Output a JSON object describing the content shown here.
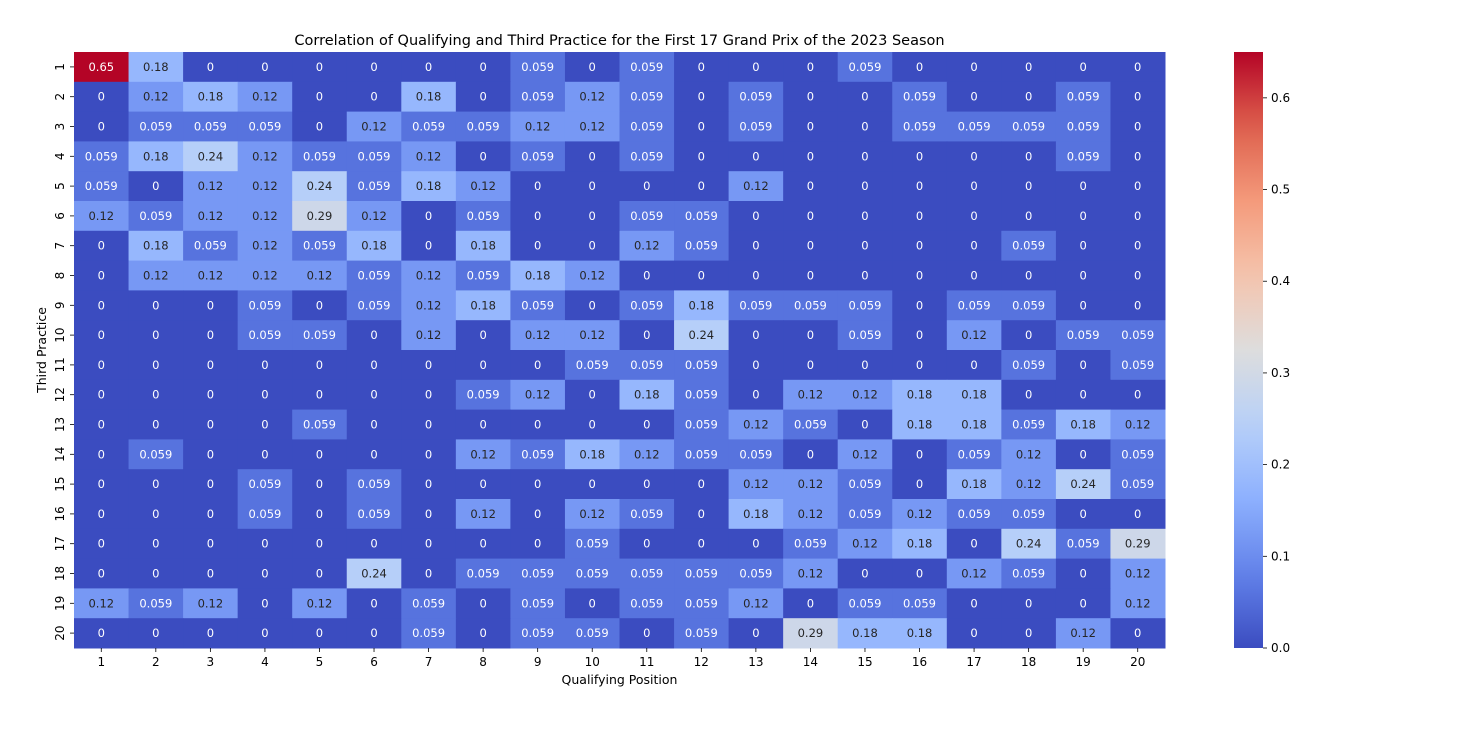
{
  "chart_data": {
    "type": "heatmap",
    "title": "Correlation of Qualifying and Third Practice for the First 17 Grand Prix of the 2023 Season",
    "xlabel": "Qualifying Position",
    "ylabel": "Third Practice",
    "x_categories": [
      "1",
      "2",
      "3",
      "4",
      "5",
      "6",
      "7",
      "8",
      "9",
      "10",
      "11",
      "12",
      "13",
      "14",
      "15",
      "16",
      "17",
      "18",
      "19",
      "20"
    ],
    "y_categories": [
      "1",
      "2",
      "3",
      "4",
      "5",
      "6",
      "7",
      "8",
      "9",
      "10",
      "11",
      "12",
      "13",
      "14",
      "15",
      "16",
      "17",
      "18",
      "19",
      "20"
    ],
    "values": [
      [
        0.65,
        0.18,
        0,
        0,
        0,
        0,
        0,
        0,
        0.059,
        0,
        0.059,
        0,
        0,
        0,
        0.059,
        0,
        0,
        0,
        0,
        0
      ],
      [
        0,
        0.12,
        0.18,
        0.12,
        0,
        0,
        0.18,
        0,
        0.059,
        0.12,
        0.059,
        0,
        0.059,
        0,
        0,
        0.059,
        0,
        0,
        0.059,
        0
      ],
      [
        0,
        0.059,
        0.059,
        0.059,
        0,
        0.12,
        0.059,
        0.059,
        0.12,
        0.12,
        0.059,
        0,
        0.059,
        0,
        0,
        0.059,
        0.059,
        0.059,
        0.059,
        0
      ],
      [
        0.059,
        0.18,
        0.24,
        0.12,
        0.059,
        0.059,
        0.12,
        0,
        0.059,
        0,
        0.059,
        0,
        0,
        0,
        0,
        0,
        0,
        0,
        0.059,
        0
      ],
      [
        0.059,
        0,
        0.12,
        0.12,
        0.24,
        0.059,
        0.18,
        0.12,
        0,
        0,
        0,
        0,
        0.12,
        0,
        0,
        0,
        0,
        0,
        0,
        0
      ],
      [
        0.12,
        0.059,
        0.12,
        0.12,
        0.29,
        0.12,
        0,
        0.059,
        0,
        0,
        0.059,
        0.059,
        0,
        0,
        0,
        0,
        0,
        0,
        0,
        0
      ],
      [
        0,
        0.18,
        0.059,
        0.12,
        0.059,
        0.18,
        0,
        0.18,
        0,
        0,
        0.12,
        0.059,
        0,
        0,
        0,
        0,
        0,
        0.059,
        0,
        0
      ],
      [
        0,
        0.12,
        0.12,
        0.12,
        0.12,
        0.059,
        0.12,
        0.059,
        0.18,
        0.12,
        0,
        0,
        0,
        0,
        0,
        0,
        0,
        0,
        0,
        0
      ],
      [
        0,
        0,
        0,
        0.059,
        0,
        0.059,
        0.12,
        0.18,
        0.059,
        0,
        0.059,
        0.18,
        0.059,
        0.059,
        0.059,
        0,
        0.059,
        0.059,
        0,
        0
      ],
      [
        0,
        0,
        0,
        0.059,
        0.059,
        0,
        0.12,
        0,
        0.12,
        0.12,
        0,
        0.24,
        0,
        0,
        0.059,
        0,
        0.12,
        0,
        0.059,
        0.059
      ],
      [
        0,
        0,
        0,
        0,
        0,
        0,
        0,
        0,
        0,
        0.059,
        0.059,
        0.059,
        0,
        0,
        0,
        0,
        0,
        0.059,
        0,
        0.059
      ],
      [
        0,
        0,
        0,
        0,
        0,
        0,
        0,
        0.059,
        0.12,
        0,
        0.18,
        0.059,
        0,
        0.12,
        0.12,
        0.18,
        0.18,
        0,
        0,
        0
      ],
      [
        0,
        0,
        0,
        0,
        0.059,
        0,
        0,
        0,
        0,
        0,
        0,
        0.059,
        0.12,
        0.059,
        0,
        0.18,
        0.18,
        0.059,
        0.18,
        0.12
      ],
      [
        0,
        0.059,
        0,
        0,
        0,
        0,
        0,
        0.12,
        0.059,
        0.18,
        0.12,
        0.059,
        0.059,
        0,
        0.12,
        0,
        0.059,
        0.12,
        0,
        0.059
      ],
      [
        0,
        0,
        0,
        0.059,
        0,
        0.059,
        0,
        0,
        0,
        0,
        0,
        0,
        0.12,
        0.12,
        0.059,
        0,
        0.18,
        0.12,
        0.24,
        0.059
      ],
      [
        0,
        0,
        0,
        0.059,
        0,
        0.059,
        0,
        0.12,
        0,
        0.12,
        0.059,
        0,
        0.18,
        0.12,
        0.059,
        0.12,
        0.059,
        0.059,
        0,
        0
      ],
      [
        0,
        0,
        0,
        0,
        0,
        0,
        0,
        0,
        0,
        0.059,
        0,
        0,
        0,
        0.059,
        0.12,
        0.18,
        0,
        0.24,
        0.059,
        0.29
      ],
      [
        0,
        0,
        0,
        0,
        0,
        0.24,
        0,
        0.059,
        0.059,
        0.059,
        0.059,
        0.059,
        0.059,
        0.12,
        0,
        0,
        0.12,
        0.059,
        0,
        0.12
      ],
      [
        0.12,
        0.059,
        0.12,
        0,
        0.12,
        0,
        0.059,
        0,
        0.059,
        0,
        0.059,
        0.059,
        0.12,
        0,
        0.059,
        0.059,
        0,
        0,
        0,
        0.12
      ],
      [
        0,
        0,
        0,
        0,
        0,
        0,
        0.059,
        0,
        0.059,
        0.059,
        0,
        0.059,
        0,
        0.29,
        0.18,
        0.18,
        0,
        0,
        0.12,
        0
      ]
    ],
    "colormap": "coolwarm",
    "vmin": 0,
    "vmax": 0.65,
    "colorbar_ticks": [
      "0.0",
      "0.1",
      "0.2",
      "0.3",
      "0.4",
      "0.5",
      "0.6"
    ],
    "colorbar_tick_values": [
      0,
      0.1,
      0.2,
      0.3,
      0.4,
      0.5,
      0.6
    ],
    "colors": {
      "low": "#3b4cc0",
      "mid": "#dddddd",
      "high": "#b40426",
      "text_dark": "#262626",
      "text_light": "#ffffff"
    }
  }
}
